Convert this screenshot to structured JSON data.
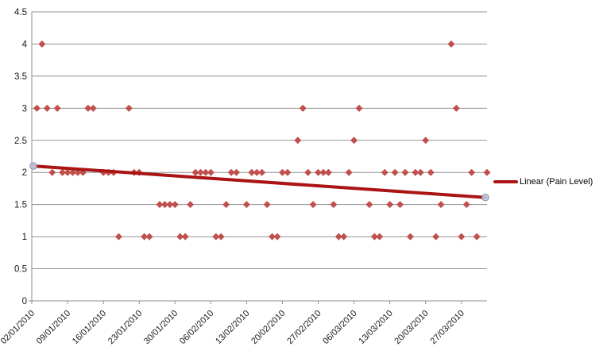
{
  "chart_data": {
    "type": "scatter",
    "title": "",
    "xlabel": "",
    "ylabel": "",
    "grid": true,
    "legend_position": "right",
    "y_axis_range": [
      0,
      4.5
    ],
    "y_tick_step": 0.5,
    "y_tick_labels": [
      "0",
      "0.5",
      "1",
      "1.5",
      "2",
      "2.5",
      "3",
      "3.5",
      "4",
      "4.5"
    ],
    "x_tick_labels": [
      "02/01/2010",
      "09/01/2010",
      "16/01/2010",
      "23/01/2010",
      "30/01/2010",
      "06/02/2010",
      "13/02/2010",
      "20/02/2010",
      "27/02/2010",
      "06/03/2010",
      "13/03/2010",
      "20/03/2010",
      "27/03/2010"
    ],
    "x_axis_start_date": "02/01/2010",
    "x_axis_end_date": "01/04/2010",
    "series": [
      {
        "name": "Pain Level",
        "marker": "diamond",
        "points": [
          {
            "date": "03/01/2010",
            "value": 3
          },
          {
            "date": "04/01/2010",
            "value": 4
          },
          {
            "date": "05/01/2010",
            "value": 3
          },
          {
            "date": "06/01/2010",
            "value": 2
          },
          {
            "date": "07/01/2010",
            "value": 3
          },
          {
            "date": "08/01/2010",
            "value": 2
          },
          {
            "date": "09/01/2010",
            "value": 2
          },
          {
            "date": "10/01/2010",
            "value": 2
          },
          {
            "date": "11/01/2010",
            "value": 2
          },
          {
            "date": "12/01/2010",
            "value": 2
          },
          {
            "date": "13/01/2010",
            "value": 3
          },
          {
            "date": "14/01/2010",
            "value": 3
          },
          {
            "date": "16/01/2010",
            "value": 2
          },
          {
            "date": "17/01/2010",
            "value": 2
          },
          {
            "date": "18/01/2010",
            "value": 2
          },
          {
            "date": "19/01/2010",
            "value": 1
          },
          {
            "date": "21/01/2010",
            "value": 3
          },
          {
            "date": "22/01/2010",
            "value": 2
          },
          {
            "date": "23/01/2010",
            "value": 2
          },
          {
            "date": "24/01/2010",
            "value": 1
          },
          {
            "date": "25/01/2010",
            "value": 1
          },
          {
            "date": "27/01/2010",
            "value": 1.5
          },
          {
            "date": "28/01/2010",
            "value": 1.5
          },
          {
            "date": "29/01/2010",
            "value": 1.5
          },
          {
            "date": "30/01/2010",
            "value": 1.5
          },
          {
            "date": "31/01/2010",
            "value": 1
          },
          {
            "date": "01/02/2010",
            "value": 1
          },
          {
            "date": "02/02/2010",
            "value": 1.5
          },
          {
            "date": "03/02/2010",
            "value": 2
          },
          {
            "date": "04/02/2010",
            "value": 2
          },
          {
            "date": "05/02/2010",
            "value": 2
          },
          {
            "date": "06/02/2010",
            "value": 2
          },
          {
            "date": "07/02/2010",
            "value": 1
          },
          {
            "date": "08/02/2010",
            "value": 1
          },
          {
            "date": "09/02/2010",
            "value": 1.5
          },
          {
            "date": "10/02/2010",
            "value": 2
          },
          {
            "date": "11/02/2010",
            "value": 2
          },
          {
            "date": "13/02/2010",
            "value": 1.5
          },
          {
            "date": "14/02/2010",
            "value": 2
          },
          {
            "date": "15/02/2010",
            "value": 2
          },
          {
            "date": "16/02/2010",
            "value": 2
          },
          {
            "date": "17/02/2010",
            "value": 1.5
          },
          {
            "date": "18/02/2010",
            "value": 1
          },
          {
            "date": "19/02/2010",
            "value": 1
          },
          {
            "date": "20/02/2010",
            "value": 2
          },
          {
            "date": "21/02/2010",
            "value": 2
          },
          {
            "date": "23/02/2010",
            "value": 2.5
          },
          {
            "date": "24/02/2010",
            "value": 3
          },
          {
            "date": "25/02/2010",
            "value": 2
          },
          {
            "date": "26/02/2010",
            "value": 1.5
          },
          {
            "date": "27/02/2010",
            "value": 2
          },
          {
            "date": "28/02/2010",
            "value": 2
          },
          {
            "date": "01/03/2010",
            "value": 2
          },
          {
            "date": "02/03/2010",
            "value": 1.5
          },
          {
            "date": "03/03/2010",
            "value": 1
          },
          {
            "date": "04/03/2010",
            "value": 1
          },
          {
            "date": "05/03/2010",
            "value": 2
          },
          {
            "date": "06/03/2010",
            "value": 2.5
          },
          {
            "date": "07/03/2010",
            "value": 3
          },
          {
            "date": "09/03/2010",
            "value": 1.5
          },
          {
            "date": "10/03/2010",
            "value": 1
          },
          {
            "date": "11/03/2010",
            "value": 1
          },
          {
            "date": "12/03/2010",
            "value": 2
          },
          {
            "date": "13/03/2010",
            "value": 1.5
          },
          {
            "date": "14/03/2010",
            "value": 2
          },
          {
            "date": "15/03/2010",
            "value": 1.5
          },
          {
            "date": "16/03/2010",
            "value": 2
          },
          {
            "date": "17/03/2010",
            "value": 1
          },
          {
            "date": "18/03/2010",
            "value": 2
          },
          {
            "date": "19/03/2010",
            "value": 2
          },
          {
            "date": "20/03/2010",
            "value": 2.5
          },
          {
            "date": "21/03/2010",
            "value": 2
          },
          {
            "date": "22/03/2010",
            "value": 1
          },
          {
            "date": "23/03/2010",
            "value": 1.5
          },
          {
            "date": "25/03/2010",
            "value": 4
          },
          {
            "date": "26/03/2010",
            "value": 3
          },
          {
            "date": "27/03/2010",
            "value": 1
          },
          {
            "date": "28/03/2010",
            "value": 1.5
          },
          {
            "date": "29/03/2010",
            "value": 2
          },
          {
            "date": "30/03/2010",
            "value": 1
          },
          {
            "date": "01/04/2010",
            "value": 2
          }
        ]
      }
    ],
    "trendline": {
      "legend_label": "Linear (Pain Level)",
      "start": {
        "date": "02/01/2010",
        "value": 2.1
      },
      "end": {
        "date": "01/04/2010",
        "value": 1.61
      }
    },
    "colors": {
      "diamond": "#C0504D",
      "trendline": "#AA1414",
      "gridline": "#909090",
      "axis": "#8C8C8C",
      "tick_text": "#1A1A1A",
      "endpoint_fill": "#C3C9DF",
      "endpoint_stroke": "#8B96B4",
      "background": "#FFFFFF"
    }
  }
}
